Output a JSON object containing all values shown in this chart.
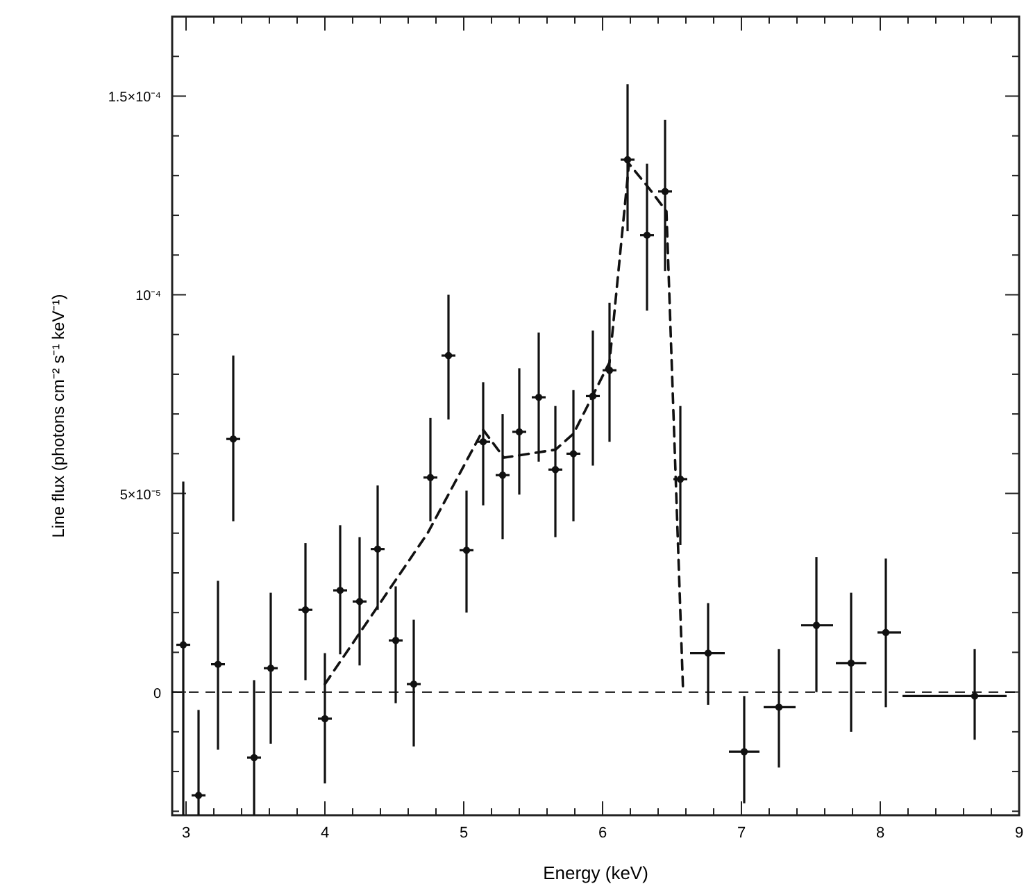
{
  "chart_data": {
    "type": "scatter",
    "xlabel": "Energy (keV)",
    "ylabel": "Line flux (photons cm⁻² s⁻¹ keV⁻¹)",
    "xlim": [
      2.9,
      9
    ],
    "ylim": [
      -3.1e-05,
      0.00017
    ],
    "xticks": [
      3,
      {
        "value": 3.2,
        "label": null
      },
      {
        "value": 3.4,
        "label": null
      },
      {
        "value": 3.6,
        "label": null
      },
      {
        "value": 3.8,
        "label": null
      },
      4,
      {
        "value": 4.2,
        "label": null
      },
      {
        "value": 4.4,
        "label": null
      },
      {
        "value": 4.6,
        "label": null
      },
      {
        "value": 4.8,
        "label": null
      },
      5,
      {
        "value": 5.2,
        "label": null
      },
      {
        "value": 5.4,
        "label": null
      },
      {
        "value": 5.6,
        "label": null
      },
      {
        "value": 5.8,
        "label": null
      },
      6,
      {
        "value": 6.2,
        "label": null
      },
      {
        "value": 6.4,
        "label": null
      },
      {
        "value": 6.6,
        "label": null
      },
      {
        "value": 6.8,
        "label": null
      },
      7,
      {
        "value": 7.2,
        "label": null
      },
      {
        "value": 7.4,
        "label": null
      },
      {
        "value": 7.6,
        "label": null
      },
      {
        "value": 7.8,
        "label": null
      },
      8,
      {
        "value": 8.2,
        "label": null
      },
      {
        "value": 8.4,
        "label": null
      },
      {
        "value": 8.6,
        "label": null
      },
      {
        "value": 8.8,
        "label": null
      },
      9
    ],
    "yticks": [
      {
        "value": -3e-05,
        "label": null
      },
      {
        "value": -2e-05,
        "label": null
      },
      {
        "value": -1e-05,
        "label": null
      },
      0,
      {
        "value": 1e-05,
        "label": null
      },
      {
        "value": 2e-05,
        "label": null
      },
      {
        "value": 3e-05,
        "label": null
      },
      {
        "value": 4e-05,
        "label": null
      },
      {
        "value": 5e-05,
        "label": "5×10⁻⁵"
      },
      {
        "value": 6e-05,
        "label": null
      },
      {
        "value": 7e-05,
        "label": null
      },
      {
        "value": 8e-05,
        "label": null
      },
      {
        "value": 9e-05,
        "label": null
      },
      {
        "value": 0.0001,
        "label": "10⁻⁴"
      },
      {
        "value": 0.00011,
        "label": null
      },
      {
        "value": 0.00012,
        "label": null
      },
      {
        "value": 0.00013,
        "label": null
      },
      {
        "value": 0.00014,
        "label": null
      },
      {
        "value": 0.00015,
        "label": "1.5×10⁻⁴"
      },
      {
        "value": 0.00016,
        "label": null
      }
    ],
    "ref_lines": [
      {
        "axis": "y",
        "value": 0,
        "color": "#000000",
        "line_style": "dashed"
      }
    ],
    "series": [
      {
        "color": "#111111",
        "marker": "circle",
        "x": [
          2.98,
          3.09,
          3.23,
          3.34,
          3.49,
          3.61,
          3.86,
          4.0,
          4.11,
          4.25,
          4.38,
          4.51,
          4.64,
          4.76,
          4.89,
          5.02,
          5.14,
          5.28,
          5.4,
          5.54,
          5.66,
          5.79,
          5.93,
          6.05,
          6.18,
          6.32,
          6.45,
          6.56,
          6.76,
          7.02,
          7.27,
          7.54,
          7.79,
          8.04,
          8.68
        ],
        "values": [
          1.19e-05,
          -2.6e-05,
          7e-06,
          6.37e-05,
          -1.65e-05,
          6e-06,
          2.07e-05,
          -6.7e-06,
          2.56e-05,
          2.28e-05,
          3.6e-05,
          1.3e-05,
          2e-06,
          5.4e-05,
          8.47e-05,
          3.57e-05,
          6.3e-05,
          5.46e-05,
          6.55e-05,
          7.42e-05,
          5.6e-05,
          6e-05,
          7.45e-05,
          8.1e-05,
          0.000134,
          0.000115,
          0.000126,
          5.36e-05,
          9.8e-06,
          -1.5e-05,
          -3.8e-06,
          1.68e-05,
          7.3e-06,
          1.5e-05,
          -1e-06
        ],
        "errors": [
          [
            -3.1e-05,
            5.3e-05
          ],
          [
            -3.1e-05,
            -4.5e-06
          ],
          [
            -1.45e-05,
            2.8e-05
          ],
          [
            4.3e-05,
            8.47e-05
          ],
          [
            -3.1e-05,
            3e-06
          ],
          [
            -1.3e-05,
            2.5e-05
          ],
          [
            3e-06,
            3.75e-05
          ],
          [
            -2.3e-05,
            9.8e-06
          ],
          [
            9.5e-06,
            4.2e-05
          ],
          [
            6.7e-06,
            3.9e-05
          ],
          [
            2.07e-05,
            5.2e-05
          ],
          [
            -2.8e-06,
            2.66e-05
          ],
          [
            -1.37e-05,
            1.82e-05
          ],
          [
            4.3e-05,
            6.9e-05
          ],
          [
            6.86e-05,
            0.0001
          ],
          [
            2e-05,
            5.07e-05
          ],
          [
            4.7e-05,
            7.8e-05
          ],
          [
            3.85e-05,
            7e-05
          ],
          [
            4.97e-05,
            8.15e-05
          ],
          [
            5.8e-05,
            9.05e-05
          ],
          [
            3.9e-05,
            7.2e-05
          ],
          [
            4.3e-05,
            7.6e-05
          ],
          [
            5.7e-05,
            9.1e-05
          ],
          [
            6.3e-05,
            9.8e-05
          ],
          [
            0.000116,
            0.000153
          ],
          [
            9.6e-05,
            0.000133
          ],
          [
            0.000106,
            0.000144
          ],
          [
            3.7e-05,
            7.2e-05
          ],
          [
            -3.2e-06,
            2.24e-05
          ],
          [
            -2.8e-05,
            -1e-06
          ],
          [
            -1.9e-05,
            1.08e-05
          ],
          [
            0,
            3.4e-05
          ],
          [
            -1e-05,
            2.5e-05
          ],
          [
            -3.8e-06,
            3.36e-05
          ],
          [
            -1.2e-05,
            1.08e-05
          ]
        ],
        "xerrors": [
          0.05,
          0.05,
          0.05,
          0.05,
          0.05,
          0.05,
          0.05,
          0.05,
          0.05,
          0.05,
          0.05,
          0.05,
          0.05,
          0.05,
          0.05,
          0.05,
          0.05,
          0.05,
          0.05,
          0.05,
          0.05,
          0.05,
          0.05,
          0.05,
          0.05,
          0.05,
          0.05,
          0.05,
          [
            6.63,
            6.88
          ],
          [
            6.91,
            7.13
          ],
          [
            7.16,
            7.39
          ],
          [
            7.43,
            7.66
          ],
          [
            7.68,
            7.9
          ],
          [
            7.98,
            8.15
          ],
          [
            8.16,
            8.91
          ]
        ]
      },
      {
        "type": "line",
        "color": "#111111",
        "marker": "none",
        "line_style": "dashed",
        "x": [
          4.0,
          4.74,
          5.14,
          5.29,
          5.66,
          5.79,
          6.05,
          6.19,
          6.33,
          6.46,
          6.58
        ],
        "values": [
          2e-06,
          4e-05,
          6.6e-05,
          5.9e-05,
          6.1e-05,
          6.5e-05,
          8.3e-05,
          0.000133,
          0.000127,
          0.000121,
          0
        ]
      }
    ]
  }
}
